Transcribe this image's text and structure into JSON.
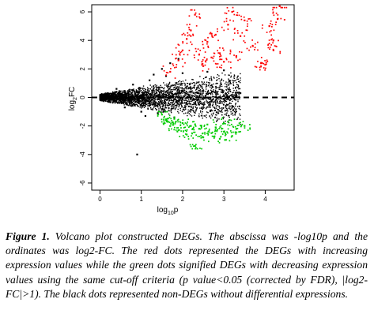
{
  "chart_data": {
    "type": "scatter",
    "xlabel": "log10p",
    "ylabel": "log2FC",
    "xlim": [
      -0.2,
      4.7
    ],
    "ylim": [
      -6.5,
      6.5
    ],
    "x_ticks": [
      0,
      1,
      2,
      3,
      4
    ],
    "y_ticks": [
      -6,
      -4,
      -2,
      0,
      2,
      4,
      6
    ],
    "threshold_line": {
      "y": 0,
      "style": "dashed"
    },
    "grid": false,
    "legend": "none",
    "series": [
      {
        "color": "#000000",
        "points": [
          [
            0.1,
            0.2
          ],
          [
            0.2,
            -0.3
          ],
          [
            0.4,
            0.6
          ],
          [
            0.6,
            -0.7
          ],
          [
            0.8,
            0.9
          ],
          [
            1.0,
            -1.0
          ],
          [
            1.2,
            1.2
          ],
          [
            1.4,
            -1.1
          ],
          [
            1.6,
            1.5
          ],
          [
            1.8,
            -1.4
          ],
          [
            2.0,
            1.7
          ],
          [
            2.2,
            0.6
          ],
          [
            2.4,
            -0.5
          ],
          [
            2.6,
            1.8
          ],
          [
            2.8,
            0.4
          ],
          [
            3.0,
            1.9
          ],
          [
            3.2,
            -0.6
          ],
          [
            3.4,
            0.3
          ],
          [
            0.9,
            -4.0
          ],
          [
            0.3,
            0.1
          ],
          [
            1.1,
            -1.3
          ],
          [
            1.3,
            1.6
          ],
          [
            1.5,
            2.0
          ],
          [
            1.7,
            2.4
          ],
          [
            1.9,
            2.7
          ]
        ]
      },
      {
        "color": "#ff0000",
        "points": [
          [
            1.7,
            1.8
          ],
          [
            1.9,
            2.6
          ],
          [
            2.0,
            3.3
          ],
          [
            2.1,
            4.1
          ],
          [
            2.2,
            4.7
          ],
          [
            2.3,
            5.8
          ],
          [
            2.4,
            3.0
          ],
          [
            2.5,
            2.2
          ],
          [
            2.6,
            3.9
          ],
          [
            2.7,
            2.8
          ],
          [
            2.8,
            4.4
          ],
          [
            2.9,
            3.1
          ],
          [
            3.0,
            2.5
          ],
          [
            3.1,
            5.1
          ],
          [
            3.2,
            6.0
          ],
          [
            3.3,
            2.9
          ],
          [
            3.4,
            4.3
          ],
          [
            3.5,
            5.4
          ],
          [
            3.7,
            3.6
          ],
          [
            3.9,
            2.4
          ],
          [
            4.0,
            2.3
          ],
          [
            4.1,
            5.0
          ],
          [
            4.2,
            4.0
          ],
          [
            4.3,
            5.5
          ],
          [
            4.35,
            6.4
          ],
          [
            4.2,
            3.3
          ]
        ]
      },
      {
        "color": "#00cc00",
        "points": [
          [
            1.5,
            -1.2
          ],
          [
            1.6,
            -1.6
          ],
          [
            1.7,
            -2.0
          ],
          [
            1.8,
            -1.5
          ],
          [
            1.9,
            -2.3
          ],
          [
            2.0,
            -1.8
          ],
          [
            2.1,
            -2.6
          ],
          [
            2.2,
            -2.0
          ],
          [
            2.3,
            -3.4
          ],
          [
            2.4,
            -2.2
          ],
          [
            2.5,
            -2.8
          ],
          [
            2.6,
            -1.9
          ],
          [
            2.7,
            -2.5
          ],
          [
            2.8,
            -2.1
          ],
          [
            2.9,
            -2.9
          ],
          [
            3.0,
            -2.4
          ],
          [
            3.1,
            -1.7
          ],
          [
            3.3,
            -2.2
          ],
          [
            3.5,
            -2.0
          ],
          [
            3.2,
            -2.7
          ]
        ]
      }
    ]
  },
  "caption": {
    "label": "Figure 1.",
    "text": " Volcano plot constructed DEGs. The abscissa was -log10p and the ordinates was log2-FC. The red dots represented the DEGs with increasing expression values while the green dots signified DEGs with decreasing expression values using the same cut-off criteria (p value<0.05 (corrected by FDR), |log2-FC|>1). The black dots represented non-DEGs without differential expressions."
  }
}
